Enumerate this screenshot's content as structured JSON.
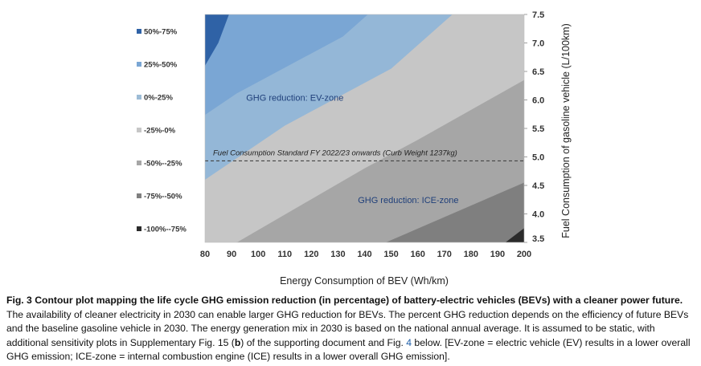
{
  "chart_data": {
    "type": "heatmap",
    "subtype": "filled-contour",
    "xlabel": "Energy Consumption of BEV (Wh/km)",
    "ylabel": "Fuel Consumption of gasoline vehicle (L/100km)",
    "x_ticks": [
      80,
      90,
      100,
      110,
      120,
      130,
      140,
      150,
      160,
      170,
      180,
      190,
      200
    ],
    "y_ticks": [
      "3.5",
      "4.0",
      "4.5",
      "5.0",
      "5.5",
      "6.0",
      "6.5",
      "7.0",
      "7.5"
    ],
    "xlim": [
      80,
      200
    ],
    "ylim": [
      3.5,
      7.5
    ],
    "legend_position": "left",
    "legend": [
      {
        "label": "50%-75%",
        "color": "#2f62a6"
      },
      {
        "label": "25%-50%",
        "color": "#7aa6d4"
      },
      {
        "label": "0%-25%",
        "color": "#9dbcd6"
      },
      {
        "label": "-25%-0%",
        "color": "#c6c6c6"
      },
      {
        "label": "-50%--25%",
        "color": "#a6a6a6"
      },
      {
        "label": "-75%--50%",
        "color": "#7f7f7f"
      },
      {
        "label": "-100%--75%",
        "color": "#2b2b2b"
      }
    ],
    "bands": [
      {
        "label": "50%-75%",
        "color": "#2f62a6",
        "boundary": [
          [
            80,
            6.6
          ],
          [
            85,
            7.0
          ],
          [
            89,
            7.5
          ]
        ]
      },
      {
        "label": "25%-50%",
        "color": "#7aa6d4",
        "boundary": [
          [
            80,
            6.6
          ],
          [
            85,
            7.0
          ],
          [
            89,
            7.5
          ]
        ]
      },
      {
        "label": "0%-25%",
        "color": "#9dbcd6",
        "boundary": [
          [
            80,
            4.6
          ],
          [
            110,
            5.55
          ],
          [
            150,
            6.55
          ],
          [
            173,
            7.5
          ]
        ]
      },
      {
        "label": "-25%-0%",
        "color": "#c6c6c6",
        "boundary": [
          [
            80,
            4.6
          ],
          [
            110,
            5.55
          ],
          [
            150,
            6.55
          ],
          [
            173,
            7.5
          ]
        ]
      },
      {
        "label": "-50%--25%",
        "color": "#a6a6a6",
        "boundary": [
          [
            92,
            3.5
          ],
          [
            140,
            4.8
          ],
          [
            160,
            5.3
          ],
          [
            200,
            6.35
          ]
        ]
      },
      {
        "label": "-75%--50%",
        "color": "#7f7f7f",
        "boundary": [
          [
            148,
            3.5
          ],
          [
            200,
            4.55
          ]
        ]
      },
      {
        "label": "-100%--75%",
        "color": "#2b2b2b",
        "boundary": [
          [
            193,
            3.5
          ],
          [
            200,
            3.75
          ]
        ]
      }
    ],
    "reference_line": {
      "y": 4.93,
      "label": "Fuel Consumption Standard FY 2022/23 onwards (Curb Weight 1237kg)"
    },
    "annotations": [
      {
        "text": "GHG reduction: EV-zone",
        "x": 110,
        "y": 6.1
      },
      {
        "text": "GHG reduction: ICE-zone",
        "x": 152,
        "y": 4.3
      }
    ]
  },
  "caption": {
    "lead": "Fig. 3 Contour plot mapping the life cycle GHG emission reduction (in percentage) of battery-electric vehicles (BEVs) with a cleaner power future.",
    "part1": " The availability of cleaner electricity in 2030 can enable larger GHG reduction for BEVs. The percent GHG reduction depends on the efficiency of future BEVs and the baseline gasoline vehicle in 2030. The energy generation mix in 2030 is based on the national annual average. It is assumed to be static, with additional sensitivity plots in Supplementary Fig. 15 (",
    "bold_b": "b",
    "part2": ") of the supporting document and Fig. ",
    "fig_ref": "4",
    "part3": " below. [EV-zone = electric vehicle (EV) results in a lower overall GHG emission; ICE-zone = internal combustion engine (ICE) results in a lower overall GHG emission]."
  }
}
